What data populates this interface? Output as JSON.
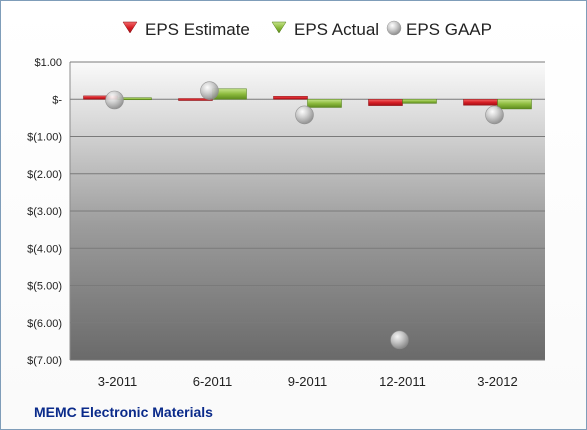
{
  "chart_data": {
    "type": "bar",
    "categories": [
      "3-2011",
      "6-2011",
      "9-2011",
      "12-2011",
      "3-2012"
    ],
    "series": [
      {
        "name": "EPS Estimate",
        "type": "bar",
        "color": "#e0252b",
        "values": [
          0.09,
          0.02,
          0.08,
          -0.17,
          -0.16
        ]
      },
      {
        "name": "EPS Actual",
        "type": "bar",
        "color": "#8dc63f",
        "values": [
          0.04,
          0.28,
          -0.22,
          -0.11,
          -0.26
        ]
      },
      {
        "name": "EPS GAAP",
        "type": "scatter",
        "color": "#b8b8b8",
        "values": [
          -0.02,
          0.23,
          -0.42,
          -6.46,
          -0.42
        ]
      }
    ],
    "ylim": [
      -7.0,
      1.0
    ],
    "yticks": [
      1,
      0,
      -1,
      -2,
      -3,
      -4,
      -5,
      -6,
      -7
    ],
    "ytick_labels": [
      "$1.00",
      "$-",
      "$(1.00)",
      "$(2.00)",
      "$(3.00)",
      "$(4.00)",
      "$(5.00)",
      "$(6.00)",
      "$(7.00)"
    ],
    "grid": true,
    "legend_position": "top"
  },
  "footer": {
    "company": "MEMC Electronic Materials"
  }
}
